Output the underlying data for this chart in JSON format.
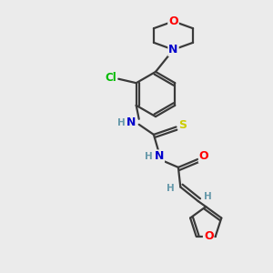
{
  "bg_color": "#ebebeb",
  "bond_color": "#3a3a3a",
  "atom_colors": {
    "O": "#ff0000",
    "N": "#0000cc",
    "S": "#cccc00",
    "Cl": "#00bb00",
    "H": "#6699aa"
  },
  "lw": 1.6,
  "fontsize": 9
}
